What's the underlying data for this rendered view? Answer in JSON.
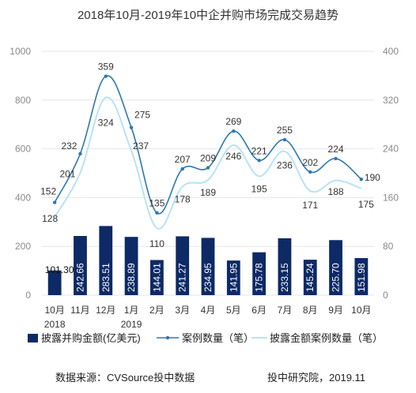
{
  "title": "2018年10月-2019年10中企并购市场完成交易趋势",
  "footer": {
    "source": "数据来源：CVSource投中数据",
    "credit": "投中研究院，2019.11"
  },
  "chart_data": {
    "type": "bar",
    "title": "2018年10月-2019年10中企并购市场完成交易趋势",
    "categories": [
      "10月",
      "11月",
      "12月",
      "1月",
      "2月",
      "3月",
      "4月",
      "5月",
      "6月",
      "7月",
      "8月",
      "9月",
      "10月"
    ],
    "year_labels": [
      {
        "index": 0,
        "label": "2018"
      },
      {
        "index": 3,
        "label": "2019"
      }
    ],
    "y_left": {
      "min": 0,
      "max": 1000,
      "ticks": [
        0,
        200,
        400,
        600,
        800,
        1000
      ]
    },
    "y_right": {
      "min": 0,
      "max": 400,
      "ticks": [
        0,
        80,
        160,
        240,
        320,
        400
      ]
    },
    "grid": true,
    "legend_position": "bottom",
    "series": [
      {
        "name": "披露并购金额(亿美元)",
        "type": "bar",
        "axis": "left",
        "color": "#0d2a66",
        "values": [
          101.3,
          242.66,
          283.51,
          238.89,
          144.01,
          241.27,
          234.95,
          141.95,
          175.78,
          233.15,
          145.24,
          225.7,
          151.98
        ],
        "labels": [
          "101.30",
          "242.66",
          "283.51",
          "238.89",
          "144.01",
          "241.27",
          "234.95",
          "141.95",
          "175.78",
          "233.15",
          "145.24",
          "225.70",
          "151.98"
        ]
      },
      {
        "name": "案例数量（笔）",
        "type": "line",
        "axis": "right",
        "color": "#2a78b4",
        "values": [
          152,
          232,
          359,
          275,
          135,
          207,
          209,
          269,
          221,
          255,
          202,
          224,
          190
        ]
      },
      {
        "name": "披露金额案例数量（笔）",
        "type": "line",
        "axis": "right",
        "color": "#b8e2f7",
        "values": [
          128,
          201,
          324,
          237,
          110,
          178,
          189,
          246,
          195,
          236,
          171,
          188,
          175
        ]
      }
    ]
  }
}
